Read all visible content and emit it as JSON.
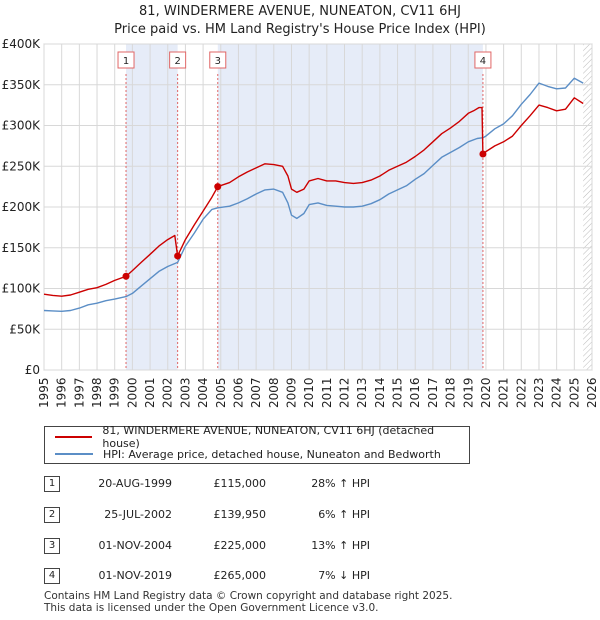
{
  "chart_data": {
    "type": "line",
    "title": "81, WINDERMERE AVENUE, NUNEATON, CV11 6HJ",
    "subtitle": "Price paid vs. HM Land Registry's House Price Index (HPI)",
    "xlim": [
      1995,
      2026
    ],
    "ylim": [
      0,
      400000
    ],
    "x_ticks": [
      "1995",
      "1996",
      "1997",
      "1998",
      "1999",
      "2000",
      "2001",
      "2002",
      "2003",
      "2004",
      "2005",
      "2006",
      "2007",
      "2008",
      "2009",
      "2010",
      "2011",
      "2012",
      "2013",
      "2014",
      "2015",
      "2016",
      "2017",
      "2018",
      "2019",
      "2020",
      "2021",
      "2022",
      "2023",
      "2024",
      "2025",
      "2026"
    ],
    "y_ticks": [
      {
        "value": 0,
        "label": "£0"
      },
      {
        "value": 50000,
        "label": "£50K"
      },
      {
        "value": 100000,
        "label": "£100K"
      },
      {
        "value": 150000,
        "label": "£150K"
      },
      {
        "value": 200000,
        "label": "£200K"
      },
      {
        "value": 250000,
        "label": "£250K"
      },
      {
        "value": 300000,
        "label": "£300K"
      },
      {
        "value": 350000,
        "label": "£350K"
      },
      {
        "value": 400000,
        "label": "£400K"
      }
    ],
    "shaded_ranges": [
      [
        1999.64,
        2002.56
      ],
      [
        2004.83,
        2019.83
      ]
    ],
    "future_hatch_from": 2025.5,
    "series": [
      {
        "name": "81, WINDERMERE AVENUE, NUNEATON, CV11 6HJ (detached house)",
        "color": "#cc0000",
        "points": [
          [
            1995.0,
            93000
          ],
          [
            1995.5,
            91500
          ],
          [
            1996.0,
            90500
          ],
          [
            1996.5,
            92000
          ],
          [
            1997.0,
            95500
          ],
          [
            1997.5,
            99000
          ],
          [
            1998.0,
            101000
          ],
          [
            1998.5,
            105000
          ],
          [
            1999.0,
            110000
          ],
          [
            1999.64,
            115000
          ],
          [
            2000.0,
            122000
          ],
          [
            2000.5,
            132000
          ],
          [
            2001.0,
            142000
          ],
          [
            2001.5,
            152000
          ],
          [
            2002.0,
            160000
          ],
          [
            2002.4,
            165000
          ],
          [
            2002.56,
            139950
          ],
          [
            2003.0,
            160000
          ],
          [
            2003.5,
            178000
          ],
          [
            2004.0,
            195000
          ],
          [
            2004.5,
            212000
          ],
          [
            2004.83,
            225000
          ],
          [
            2005.5,
            230000
          ],
          [
            2006.0,
            237000
          ],
          [
            2006.5,
            243000
          ],
          [
            2007.0,
            248000
          ],
          [
            2007.5,
            253000
          ],
          [
            2008.0,
            252000
          ],
          [
            2008.5,
            250000
          ],
          [
            2008.8,
            238000
          ],
          [
            2009.0,
            222000
          ],
          [
            2009.3,
            218000
          ],
          [
            2009.7,
            222000
          ],
          [
            2010.0,
            232000
          ],
          [
            2010.5,
            235000
          ],
          [
            2011.0,
            232000
          ],
          [
            2011.5,
            232000
          ],
          [
            2012.0,
            230000
          ],
          [
            2012.5,
            229000
          ],
          [
            2013.0,
            230000
          ],
          [
            2013.5,
            233000
          ],
          [
            2014.0,
            238000
          ],
          [
            2014.5,
            245000
          ],
          [
            2015.0,
            250000
          ],
          [
            2015.5,
            255000
          ],
          [
            2016.0,
            262000
          ],
          [
            2016.5,
            270000
          ],
          [
            2017.0,
            280000
          ],
          [
            2017.5,
            290000
          ],
          [
            2018.0,
            297000
          ],
          [
            2018.5,
            305000
          ],
          [
            2019.0,
            315000
          ],
          [
            2019.3,
            318000
          ],
          [
            2019.6,
            322000
          ],
          [
            2019.78,
            322000
          ],
          [
            2019.83,
            265000
          ],
          [
            2020.0,
            268000
          ],
          [
            2020.5,
            275000
          ],
          [
            2021.0,
            280000
          ],
          [
            2021.5,
            287000
          ],
          [
            2022.0,
            300000
          ],
          [
            2022.5,
            312000
          ],
          [
            2023.0,
            325000
          ],
          [
            2023.5,
            322000
          ],
          [
            2024.0,
            318000
          ],
          [
            2024.5,
            320000
          ],
          [
            2025.0,
            334000
          ],
          [
            2025.5,
            327000
          ]
        ]
      },
      {
        "name": "HPI: Average price, detached house, Nuneaton and Bedworth",
        "color": "#5b8ec6",
        "points": [
          [
            1995.0,
            73000
          ],
          [
            1995.5,
            72500
          ],
          [
            1996.0,
            72000
          ],
          [
            1996.5,
            73000
          ],
          [
            1997.0,
            76000
          ],
          [
            1997.5,
            80000
          ],
          [
            1998.0,
            82000
          ],
          [
            1998.5,
            85000
          ],
          [
            1999.0,
            87000
          ],
          [
            1999.64,
            90000
          ],
          [
            2000.0,
            94000
          ],
          [
            2000.5,
            103000
          ],
          [
            2001.0,
            112000
          ],
          [
            2001.5,
            121000
          ],
          [
            2002.0,
            127000
          ],
          [
            2002.56,
            132000
          ],
          [
            2003.0,
            152000
          ],
          [
            2003.5,
            168000
          ],
          [
            2004.0,
            185000
          ],
          [
            2004.5,
            197000
          ],
          [
            2004.83,
            199000
          ],
          [
            2005.5,
            201000
          ],
          [
            2006.0,
            205000
          ],
          [
            2006.5,
            210000
          ],
          [
            2007.0,
            216000
          ],
          [
            2007.5,
            221000
          ],
          [
            2008.0,
            222000
          ],
          [
            2008.5,
            218000
          ],
          [
            2008.8,
            205000
          ],
          [
            2009.0,
            190000
          ],
          [
            2009.3,
            186000
          ],
          [
            2009.7,
            192000
          ],
          [
            2010.0,
            203000
          ],
          [
            2010.5,
            205000
          ],
          [
            2011.0,
            202000
          ],
          [
            2011.5,
            201000
          ],
          [
            2012.0,
            200000
          ],
          [
            2012.5,
            200000
          ],
          [
            2013.0,
            201000
          ],
          [
            2013.5,
            204000
          ],
          [
            2014.0,
            209000
          ],
          [
            2014.5,
            216000
          ],
          [
            2015.0,
            221000
          ],
          [
            2015.5,
            226000
          ],
          [
            2016.0,
            234000
          ],
          [
            2016.5,
            241000
          ],
          [
            2017.0,
            251000
          ],
          [
            2017.5,
            261000
          ],
          [
            2018.0,
            267000
          ],
          [
            2018.5,
            273000
          ],
          [
            2019.0,
            280000
          ],
          [
            2019.5,
            284000
          ],
          [
            2019.83,
            285000
          ],
          [
            2020.0,
            287000
          ],
          [
            2020.5,
            296000
          ],
          [
            2021.0,
            302000
          ],
          [
            2021.5,
            312000
          ],
          [
            2022.0,
            326000
          ],
          [
            2022.5,
            338000
          ],
          [
            2023.0,
            352000
          ],
          [
            2023.5,
            348000
          ],
          [
            2024.0,
            345000
          ],
          [
            2024.5,
            346000
          ],
          [
            2025.0,
            358000
          ],
          [
            2025.5,
            352000
          ]
        ]
      }
    ],
    "sales": [
      {
        "num": "1",
        "date": "20-AUG-1999",
        "price": "£115,000",
        "hpi": "28% ↑ HPI",
        "x": 1999.64,
        "value": 115000,
        "color": "#cc0000"
      },
      {
        "num": "2",
        "date": "25-JUL-2002",
        "price": "£139,950",
        "hpi": "6% ↑ HPI",
        "x": 2002.56,
        "value": 139950,
        "color": "#cc0000"
      },
      {
        "num": "3",
        "date": "01-NOV-2004",
        "price": "£225,000",
        "hpi": "13% ↑ HPI",
        "x": 2004.83,
        "value": 225000,
        "color": "#cc0000"
      },
      {
        "num": "4",
        "date": "01-NOV-2019",
        "price": "£265,000",
        "hpi": "7% ↓ HPI",
        "x": 2019.83,
        "value": 265000,
        "color": "#cc0000"
      }
    ],
    "legend_position": "below"
  },
  "footer": {
    "line1": "Contains HM Land Registry data © Crown copyright and database right 2025.",
    "line2": "This data is licensed under the Open Government Licence v3.0."
  }
}
